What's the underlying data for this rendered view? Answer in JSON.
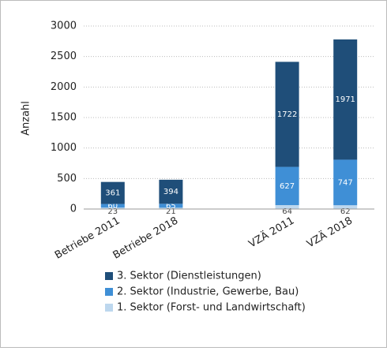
{
  "chart_data": {
    "type": "stacked_bar",
    "y_label": "Anzahl",
    "categories": [
      "Betriebe 2011",
      "Betriebe 2018",
      null,
      "VZÄ 2011",
      "VZÄ 2018"
    ],
    "series": [
      {
        "name": "1. Sektor (Forst- und Landwirtschaft)",
        "color": "#bdd7ee",
        "values": [
          23,
          21,
          null,
          64,
          62
        ]
      },
      {
        "name": "2. Sektor (Industrie, Gewerbe, Bau)",
        "color": "#3f8fd6",
        "values": [
          60,
          65,
          null,
          627,
          747
        ]
      },
      {
        "name": "3. Sektor (Dienstleistungen)",
        "color": "#1f4e79",
        "values": [
          361,
          394,
          null,
          1722,
          1971
        ]
      }
    ],
    "ylim": [
      0,
      3000
    ],
    "yticks": [
      0,
      500,
      1000,
      1500,
      2000,
      2500,
      3000
    ],
    "grid": true
  }
}
